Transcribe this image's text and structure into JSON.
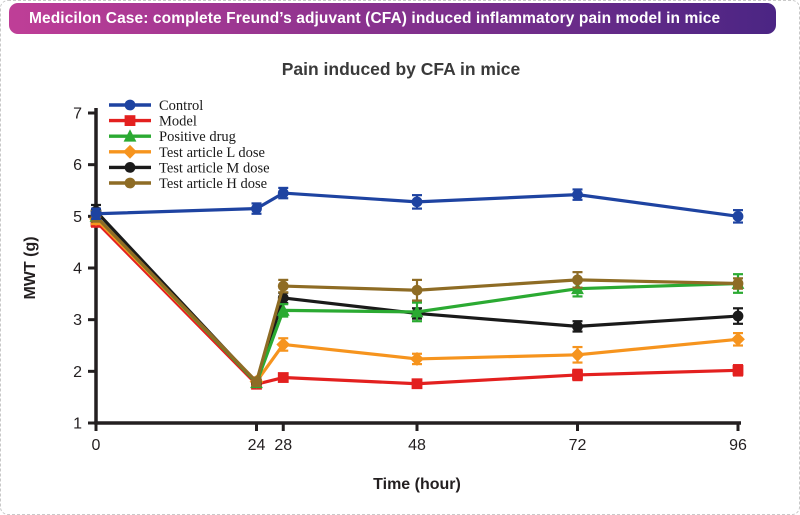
{
  "banner": {
    "text": "Medicilon Case: complete Freund’s adjuvant (CFA) induced inflammatory pain model in mice",
    "gradient_start": "#bf3e97",
    "gradient_end": "#4b2584",
    "text_color": "#ffffff"
  },
  "chart_data": {
    "type": "line",
    "title": "Pain induced by CFA in mice",
    "xlabel": "Time (hour)",
    "ylabel": "MWT (g)",
    "x": [
      0,
      24,
      28,
      48,
      72,
      96
    ],
    "x_tick_labels": [
      "0",
      "24",
      "28",
      "48",
      "72",
      "96"
    ],
    "y_ticks": [
      1,
      2,
      3,
      4,
      5,
      6,
      7
    ],
    "xlim": [
      0,
      96
    ],
    "ylim": [
      1,
      7
    ],
    "grid": false,
    "error_bars": true,
    "legend_position": "top-left-inside",
    "axis_color": "#231f20",
    "series": [
      {
        "name": "Control",
        "color": "#1e43a1",
        "marker": "circle",
        "values": [
          5.05,
          5.15,
          5.45,
          5.28,
          5.42,
          5.0
        ],
        "errors": [
          0.1,
          0.1,
          0.1,
          0.13,
          0.1,
          0.12
        ]
      },
      {
        "name": "Model",
        "color": "#e3201f",
        "marker": "square",
        "values": [
          4.9,
          1.75,
          1.88,
          1.76,
          1.93,
          2.02
        ],
        "errors": [
          0.1,
          0.08,
          0.07,
          0.07,
          0.1,
          0.1
        ]
      },
      {
        "name": "Positive drug",
        "color": "#2baa32",
        "marker": "triangle",
        "values": [
          5.0,
          1.78,
          3.18,
          3.15,
          3.6,
          3.7
        ],
        "errors": [
          0.1,
          0.08,
          0.12,
          0.18,
          0.15,
          0.18
        ]
      },
      {
        "name": "Test article L dose",
        "color": "#f6941e",
        "marker": "diamond",
        "values": [
          4.95,
          1.8,
          2.52,
          2.24,
          2.32,
          2.62
        ],
        "errors": [
          0.1,
          0.08,
          0.12,
          0.1,
          0.15,
          0.12
        ]
      },
      {
        "name": "Test article M dose",
        "color": "#1a1a1a",
        "marker": "circle",
        "values": [
          5.1,
          1.78,
          3.42,
          3.12,
          2.87,
          3.07
        ],
        "errors": [
          0.12,
          0.08,
          0.1,
          0.1,
          0.1,
          0.15
        ]
      },
      {
        "name": "Test article H dose",
        "color": "#8e6c25",
        "marker": "circle",
        "values": [
          5.0,
          1.8,
          3.65,
          3.57,
          3.77,
          3.7
        ],
        "errors": [
          0.1,
          0.08,
          0.12,
          0.2,
          0.15,
          0.1
        ]
      }
    ]
  }
}
